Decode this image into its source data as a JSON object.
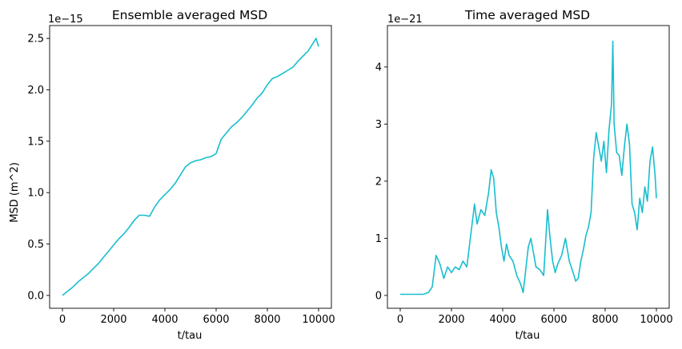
{
  "chart_data": [
    {
      "type": "line",
      "title": "Ensemble averaged MSD",
      "xlabel": "t/tau",
      "ylabel": "MSD (m^2)",
      "offset_text": "1e−15",
      "scale": 1e-15,
      "xlim": [
        -500,
        10500
      ],
      "ylim": [
        -0.125,
        2.625
      ],
      "xticks": [
        0,
        2000,
        4000,
        6000,
        8000,
        10000
      ],
      "xtick_labels": [
        "0",
        "2000",
        "4000",
        "6000",
        "8000",
        "10000"
      ],
      "yticks": [
        0.0,
        0.5,
        1.0,
        1.5,
        2.0,
        2.5
      ],
      "ytick_labels": [
        "0.0",
        "0.5",
        "1.0",
        "1.5",
        "2.0",
        "2.5"
      ],
      "color": "#17becf",
      "grid": false,
      "series": [
        {
          "x": [
            0,
            200,
            400,
            600,
            800,
            1000,
            1200,
            1400,
            1600,
            1800,
            2000,
            2200,
            2400,
            2600,
            2800,
            3000,
            3200,
            3400,
            3600,
            3800,
            4000,
            4200,
            4400,
            4600,
            4800,
            5000,
            5200,
            5400,
            5600,
            5800,
            6000,
            6200,
            6400,
            6600,
            6800,
            7000,
            7200,
            7400,
            7600,
            7800,
            8000,
            8200,
            8400,
            8600,
            8800,
            9000,
            9200,
            9400,
            9600,
            9800,
            9900,
            10000
          ],
          "y": [
            0.0,
            0.04,
            0.08,
            0.13,
            0.17,
            0.21,
            0.26,
            0.31,
            0.37,
            0.43,
            0.49,
            0.55,
            0.6,
            0.66,
            0.73,
            0.78,
            0.78,
            0.77,
            0.86,
            0.93,
            0.98,
            1.03,
            1.09,
            1.17,
            1.25,
            1.29,
            1.31,
            1.32,
            1.34,
            1.35,
            1.38,
            1.52,
            1.58,
            1.64,
            1.68,
            1.73,
            1.79,
            1.85,
            1.92,
            1.97,
            2.05,
            2.11,
            2.13,
            2.16,
            2.19,
            2.22,
            2.28,
            2.33,
            2.38,
            2.46,
            2.5,
            2.42
          ]
        }
      ]
    },
    {
      "type": "line",
      "title": "Time averaged MSD",
      "xlabel": "t/tau",
      "ylabel": "",
      "offset_text": "1e−21",
      "scale": 1e-21,
      "xlim": [
        -500,
        10500
      ],
      "ylim": [
        -0.225,
        4.725
      ],
      "xticks": [
        0,
        2000,
        4000,
        6000,
        8000,
        10000
      ],
      "xtick_labels": [
        "0",
        "2000",
        "4000",
        "6000",
        "8000",
        "10000"
      ],
      "yticks": [
        0,
        1,
        2,
        3,
        4
      ],
      "ytick_labels": [
        "0",
        "1",
        "2",
        "3",
        "4"
      ],
      "color": "#17becf",
      "grid": false,
      "series": [
        {
          "x": [
            0,
            300,
            600,
            900,
            1100,
            1250,
            1400,
            1550,
            1700,
            1850,
            2000,
            2150,
            2300,
            2450,
            2600,
            2750,
            2900,
            3000,
            3150,
            3300,
            3450,
            3550,
            3650,
            3750,
            3850,
            3950,
            4050,
            4150,
            4250,
            4400,
            4550,
            4700,
            4800,
            4900,
            5000,
            5100,
            5200,
            5300,
            5450,
            5600,
            5750,
            5850,
            5950,
            6050,
            6150,
            6300,
            6450,
            6600,
            6750,
            6850,
            6950,
            7050,
            7150,
            7250,
            7350,
            7450,
            7550,
            7650,
            7750,
            7850,
            7950,
            8050,
            8150,
            8250,
            8300,
            8350,
            8450,
            8550,
            8650,
            8750,
            8850,
            8950,
            9050,
            9150,
            9250,
            9350,
            9450,
            9550,
            9650,
            9750,
            9850,
            9950,
            10000
          ],
          "y": [
            0.02,
            0.02,
            0.02,
            0.02,
            0.05,
            0.15,
            0.7,
            0.55,
            0.3,
            0.5,
            0.4,
            0.5,
            0.45,
            0.6,
            0.5,
            1.05,
            1.6,
            1.25,
            1.5,
            1.4,
            1.8,
            2.2,
            2.05,
            1.45,
            1.2,
            0.85,
            0.6,
            0.9,
            0.7,
            0.6,
            0.35,
            0.2,
            0.05,
            0.45,
            0.85,
            1.0,
            0.75,
            0.5,
            0.45,
            0.35,
            1.5,
            1.0,
            0.6,
            0.4,
            0.55,
            0.7,
            1.0,
            0.6,
            0.4,
            0.25,
            0.3,
            0.6,
            0.8,
            1.05,
            1.2,
            1.45,
            2.4,
            2.85,
            2.6,
            2.35,
            2.7,
            2.15,
            2.9,
            3.35,
            4.45,
            3.0,
            2.5,
            2.45,
            2.1,
            2.6,
            3.0,
            2.65,
            1.6,
            1.45,
            1.15,
            1.7,
            1.45,
            1.9,
            1.65,
            2.35,
            2.6,
            2.1,
            1.7
          ]
        }
      ]
    }
  ]
}
